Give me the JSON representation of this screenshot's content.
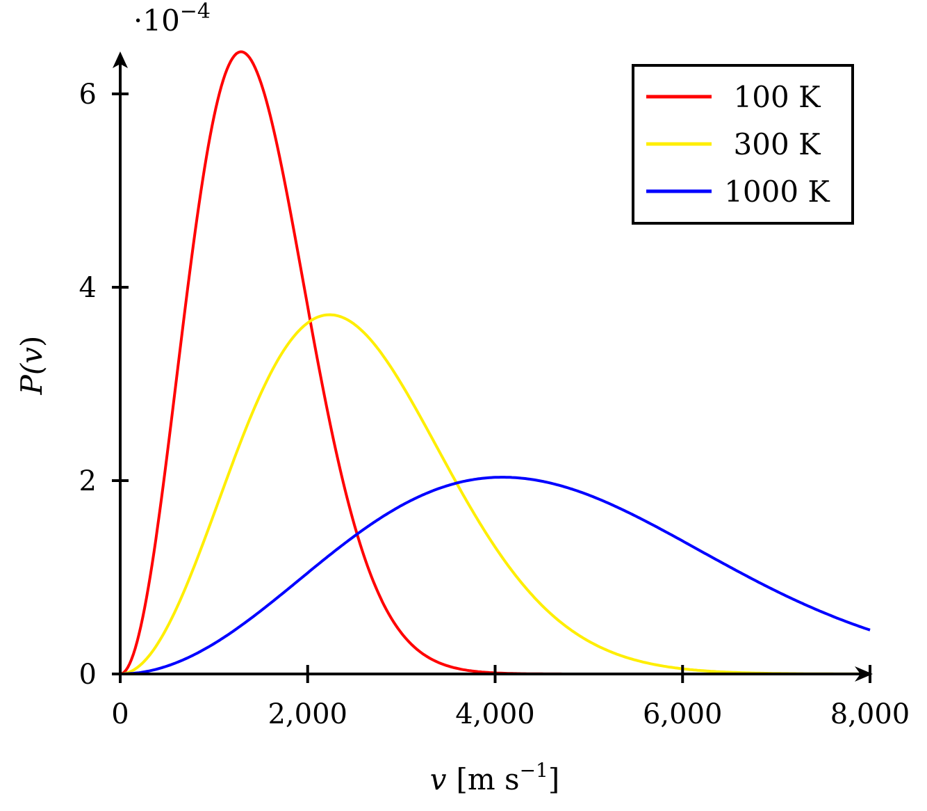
{
  "chart_data": {
    "type": "line",
    "title": "",
    "xlabel": "v [m s^-1]",
    "ylabel": "P(v)",
    "y_scale_note": "·10^-4",
    "xlim": [
      0,
      8000
    ],
    "ylim": [
      0,
      6.5
    ],
    "x_ticks": [
      0,
      2000,
      4000,
      6000,
      8000
    ],
    "x_tick_labels": [
      "0",
      "2,000",
      "4,000",
      "6,000",
      "8,000"
    ],
    "y_ticks": [
      0,
      2,
      4,
      6
    ],
    "y_tick_labels": [
      "0",
      "2",
      "4",
      "6"
    ],
    "grid": false,
    "legend_position": "top-right",
    "x": [
      0,
      250,
      500,
      750,
      1000,
      1250,
      1500,
      1750,
      2000,
      2250,
      2500,
      2750,
      3000,
      3250,
      3500,
      3750,
      4000,
      4500,
      5000,
      5500,
      6000,
      6500,
      7000,
      7500,
      8000
    ],
    "series": [
      {
        "name": "100 K",
        "color": "#ff0000",
        "values": [
          0,
          0.89,
          2.8,
          4.68,
          5.9,
          6.43,
          6.13,
          5.31,
          4.09,
          2.86,
          1.82,
          1.06,
          0.56,
          0.27,
          0.12,
          0.05,
          0.02,
          0.002,
          0.0002,
          0,
          0,
          0,
          0,
          0,
          0
        ]
      },
      {
        "name": "300 K",
        "color": "#ffee00",
        "values": [
          0,
          0.19,
          0.68,
          1.35,
          2.06,
          2.7,
          3.21,
          3.54,
          3.7,
          3.7,
          3.55,
          3.29,
          2.95,
          2.57,
          2.18,
          1.8,
          1.44,
          0.86,
          0.47,
          0.24,
          0.11,
          0.05,
          0.02,
          0.007,
          0.002
        ]
      },
      {
        "name": "1000 K",
        "color": "#0000ff",
        "values": [
          0,
          0.03,
          0.12,
          0.27,
          0.45,
          0.66,
          0.89,
          1.12,
          1.34,
          1.54,
          1.71,
          1.85,
          1.95,
          2.01,
          2.04,
          2.04,
          2.01,
          1.87,
          1.66,
          1.4,
          1.13,
          0.87,
          0.65,
          0.47,
          0.33
        ]
      }
    ]
  },
  "axes": {
    "scale_prefix": "·10",
    "scale_exponent": "−4",
    "y_label_main": "P(",
    "y_label_var": "v",
    "y_label_close": ")",
    "x_label_var": "v",
    "x_label_unit": "[m s",
    "x_label_exp": "−1",
    "x_label_close": "]"
  },
  "legend": {
    "items": [
      {
        "label": "100 K",
        "color": "#ff0000"
      },
      {
        "label": "300 K",
        "color": "#ffee00"
      },
      {
        "label": "1000 K",
        "color": "#0000ff"
      }
    ]
  }
}
